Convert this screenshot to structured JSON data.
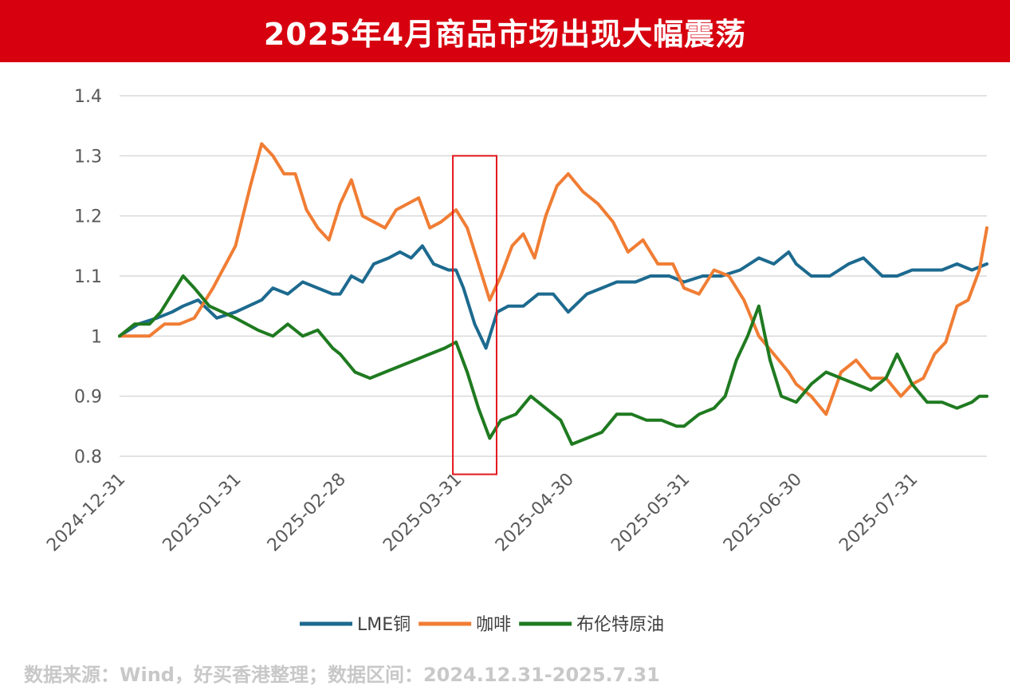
{
  "title": "2025年4月商品市场出现大幅震荡",
  "source": "数据来源：Wind，好买香港整理；数据区间：2024.12.31-2025.7.31",
  "colors": {
    "banner": "#d7000f",
    "highlight": "#e3181e",
    "grid": "#d9d9d9"
  },
  "chart_data": {
    "type": "line",
    "title": "",
    "xlabel": "",
    "ylabel": "",
    "ylim": [
      0.8,
      1.4
    ],
    "yticks": [
      {
        "value": 0.8,
        "label": "0.8"
      },
      {
        "value": 0.9,
        "label": "0.9"
      },
      {
        "value": 1.0,
        "label": "1"
      },
      {
        "value": 1.1,
        "label": "1.1"
      },
      {
        "value": 1.2,
        "label": "1.2"
      },
      {
        "value": 1.3,
        "label": "1.3"
      },
      {
        "value": 1.4,
        "label": "1.4"
      }
    ],
    "x_start": "2024-12-31",
    "x_end": "2025-08-20",
    "xticks": [
      "2024-12-31",
      "2025-01-31",
      "2025-02-28",
      "2025-03-31",
      "2025-04-30",
      "2025-05-31",
      "2025-06-30",
      "2025-07-31"
    ],
    "grid": "horizontal",
    "legend_position": "bottom",
    "highlight_range": {
      "x0": "2025-03-31",
      "x1": "2025-04-10",
      "y0": 0.77,
      "y1": 1.3
    },
    "series": [
      {
        "name": "LME铜",
        "color": "#1d6a8f",
        "points": [
          [
            "2024-12-31",
            1.0
          ],
          [
            "2025-01-05",
            1.02
          ],
          [
            "2025-01-10",
            1.03
          ],
          [
            "2025-01-14",
            1.04
          ],
          [
            "2025-01-17",
            1.05
          ],
          [
            "2025-01-21",
            1.06
          ],
          [
            "2025-01-26",
            1.03
          ],
          [
            "2025-01-31",
            1.04
          ],
          [
            "2025-02-07",
            1.06
          ],
          [
            "2025-02-10",
            1.08
          ],
          [
            "2025-02-14",
            1.07
          ],
          [
            "2025-02-18",
            1.09
          ],
          [
            "2025-02-22",
            1.08
          ],
          [
            "2025-02-26",
            1.07
          ],
          [
            "2025-02-28",
            1.07
          ],
          [
            "2025-03-03",
            1.1
          ],
          [
            "2025-03-06",
            1.09
          ],
          [
            "2025-03-09",
            1.12
          ],
          [
            "2025-03-13",
            1.13
          ],
          [
            "2025-03-16",
            1.14
          ],
          [
            "2025-03-19",
            1.13
          ],
          [
            "2025-03-22",
            1.15
          ],
          [
            "2025-03-25",
            1.12
          ],
          [
            "2025-03-29",
            1.11
          ],
          [
            "2025-03-31",
            1.11
          ],
          [
            "2025-04-02",
            1.08
          ],
          [
            "2025-04-05",
            1.02
          ],
          [
            "2025-04-08",
            0.98
          ],
          [
            "2025-04-11",
            1.04
          ],
          [
            "2025-04-14",
            1.05
          ],
          [
            "2025-04-18",
            1.05
          ],
          [
            "2025-04-22",
            1.07
          ],
          [
            "2025-04-26",
            1.07
          ],
          [
            "2025-04-30",
            1.04
          ],
          [
            "2025-05-05",
            1.07
          ],
          [
            "2025-05-09",
            1.08
          ],
          [
            "2025-05-13",
            1.09
          ],
          [
            "2025-05-18",
            1.09
          ],
          [
            "2025-05-22",
            1.1
          ],
          [
            "2025-05-27",
            1.1
          ],
          [
            "2025-05-31",
            1.09
          ],
          [
            "2025-06-05",
            1.1
          ],
          [
            "2025-06-10",
            1.1
          ],
          [
            "2025-06-15",
            1.11
          ],
          [
            "2025-06-20",
            1.13
          ],
          [
            "2025-06-24",
            1.12
          ],
          [
            "2025-06-28",
            1.14
          ],
          [
            "2025-06-30",
            1.12
          ],
          [
            "2025-07-04",
            1.1
          ],
          [
            "2025-07-09",
            1.1
          ],
          [
            "2025-07-14",
            1.12
          ],
          [
            "2025-07-18",
            1.13
          ],
          [
            "2025-07-23",
            1.1
          ],
          [
            "2025-07-27",
            1.1
          ],
          [
            "2025-07-31",
            1.11
          ],
          [
            "2025-08-04",
            1.11
          ],
          [
            "2025-08-08",
            1.11
          ],
          [
            "2025-08-12",
            1.12
          ],
          [
            "2025-08-16",
            1.11
          ],
          [
            "2025-08-20",
            1.12
          ]
        ]
      },
      {
        "name": "咖啡",
        "color": "#f07d34",
        "points": [
          [
            "2024-12-31",
            1.0
          ],
          [
            "2025-01-04",
            1.0
          ],
          [
            "2025-01-08",
            1.0
          ],
          [
            "2025-01-12",
            1.02
          ],
          [
            "2025-01-16",
            1.02
          ],
          [
            "2025-01-20",
            1.03
          ],
          [
            "2025-01-25",
            1.08
          ],
          [
            "2025-01-31",
            1.15
          ],
          [
            "2025-02-04",
            1.25
          ],
          [
            "2025-02-07",
            1.32
          ],
          [
            "2025-02-10",
            1.3
          ],
          [
            "2025-02-13",
            1.27
          ],
          [
            "2025-02-16",
            1.27
          ],
          [
            "2025-02-19",
            1.21
          ],
          [
            "2025-02-22",
            1.18
          ],
          [
            "2025-02-25",
            1.16
          ],
          [
            "2025-02-28",
            1.22
          ],
          [
            "2025-03-03",
            1.26
          ],
          [
            "2025-03-06",
            1.2
          ],
          [
            "2025-03-09",
            1.19
          ],
          [
            "2025-03-12",
            1.18
          ],
          [
            "2025-03-15",
            1.21
          ],
          [
            "2025-03-18",
            1.22
          ],
          [
            "2025-03-21",
            1.23
          ],
          [
            "2025-03-24",
            1.18
          ],
          [
            "2025-03-27",
            1.19
          ],
          [
            "2025-03-31",
            1.21
          ],
          [
            "2025-04-03",
            1.18
          ],
          [
            "2025-04-06",
            1.12
          ],
          [
            "2025-04-09",
            1.06
          ],
          [
            "2025-04-12",
            1.1
          ],
          [
            "2025-04-15",
            1.15
          ],
          [
            "2025-04-18",
            1.17
          ],
          [
            "2025-04-21",
            1.13
          ],
          [
            "2025-04-24",
            1.2
          ],
          [
            "2025-04-27",
            1.25
          ],
          [
            "2025-04-30",
            1.27
          ],
          [
            "2025-05-04",
            1.24
          ],
          [
            "2025-05-08",
            1.22
          ],
          [
            "2025-05-12",
            1.19
          ],
          [
            "2025-05-16",
            1.14
          ],
          [
            "2025-05-20",
            1.16
          ],
          [
            "2025-05-24",
            1.12
          ],
          [
            "2025-05-28",
            1.12
          ],
          [
            "2025-05-31",
            1.08
          ],
          [
            "2025-06-04",
            1.07
          ],
          [
            "2025-06-08",
            1.11
          ],
          [
            "2025-06-12",
            1.1
          ],
          [
            "2025-06-16",
            1.06
          ],
          [
            "2025-06-20",
            1.0
          ],
          [
            "2025-06-24",
            0.97
          ],
          [
            "2025-06-28",
            0.94
          ],
          [
            "2025-06-30",
            0.92
          ],
          [
            "2025-07-04",
            0.9
          ],
          [
            "2025-07-08",
            0.87
          ],
          [
            "2025-07-12",
            0.94
          ],
          [
            "2025-07-16",
            0.96
          ],
          [
            "2025-07-20",
            0.93
          ],
          [
            "2025-07-24",
            0.93
          ],
          [
            "2025-07-28",
            0.9
          ],
          [
            "2025-07-31",
            0.92
          ],
          [
            "2025-08-03",
            0.93
          ],
          [
            "2025-08-06",
            0.97
          ],
          [
            "2025-08-09",
            0.99
          ],
          [
            "2025-08-12",
            1.05
          ],
          [
            "2025-08-15",
            1.06
          ],
          [
            "2025-08-18",
            1.11
          ],
          [
            "2025-08-20",
            1.18
          ]
        ]
      },
      {
        "name": "布伦特原油",
        "color": "#1f7a20",
        "points": [
          [
            "2024-12-31",
            1.0
          ],
          [
            "2025-01-04",
            1.02
          ],
          [
            "2025-01-08",
            1.02
          ],
          [
            "2025-01-11",
            1.04
          ],
          [
            "2025-01-14",
            1.07
          ],
          [
            "2025-01-17",
            1.1
          ],
          [
            "2025-01-20",
            1.08
          ],
          [
            "2025-01-24",
            1.05
          ],
          [
            "2025-01-31",
            1.03
          ],
          [
            "2025-02-06",
            1.01
          ],
          [
            "2025-02-10",
            1.0
          ],
          [
            "2025-02-14",
            1.02
          ],
          [
            "2025-02-18",
            1.0
          ],
          [
            "2025-02-22",
            1.01
          ],
          [
            "2025-02-26",
            0.98
          ],
          [
            "2025-02-28",
            0.97
          ],
          [
            "2025-03-04",
            0.94
          ],
          [
            "2025-03-08",
            0.93
          ],
          [
            "2025-03-12",
            0.94
          ],
          [
            "2025-03-16",
            0.95
          ],
          [
            "2025-03-20",
            0.96
          ],
          [
            "2025-03-24",
            0.97
          ],
          [
            "2025-03-28",
            0.98
          ],
          [
            "2025-03-31",
            0.99
          ],
          [
            "2025-04-03",
            0.94
          ],
          [
            "2025-04-06",
            0.88
          ],
          [
            "2025-04-09",
            0.83
          ],
          [
            "2025-04-12",
            0.86
          ],
          [
            "2025-04-16",
            0.87
          ],
          [
            "2025-04-20",
            0.9
          ],
          [
            "2025-04-24",
            0.88
          ],
          [
            "2025-04-28",
            0.86
          ],
          [
            "2025-05-01",
            0.82
          ],
          [
            "2025-05-05",
            0.83
          ],
          [
            "2025-05-09",
            0.84
          ],
          [
            "2025-05-13",
            0.87
          ],
          [
            "2025-05-17",
            0.87
          ],
          [
            "2025-05-21",
            0.86
          ],
          [
            "2025-05-25",
            0.86
          ],
          [
            "2025-05-29",
            0.85
          ],
          [
            "2025-05-31",
            0.85
          ],
          [
            "2025-06-04",
            0.87
          ],
          [
            "2025-06-08",
            0.88
          ],
          [
            "2025-06-11",
            0.9
          ],
          [
            "2025-06-14",
            0.96
          ],
          [
            "2025-06-17",
            1.0
          ],
          [
            "2025-06-20",
            1.05
          ],
          [
            "2025-06-23",
            0.96
          ],
          [
            "2025-06-26",
            0.9
          ],
          [
            "2025-06-30",
            0.89
          ],
          [
            "2025-07-04",
            0.92
          ],
          [
            "2025-07-08",
            0.94
          ],
          [
            "2025-07-12",
            0.93
          ],
          [
            "2025-07-16",
            0.92
          ],
          [
            "2025-07-20",
            0.91
          ],
          [
            "2025-07-24",
            0.93
          ],
          [
            "2025-07-27",
            0.97
          ],
          [
            "2025-07-31",
            0.92
          ],
          [
            "2025-08-04",
            0.89
          ],
          [
            "2025-08-08",
            0.89
          ],
          [
            "2025-08-12",
            0.88
          ],
          [
            "2025-08-16",
            0.89
          ],
          [
            "2025-08-18",
            0.9
          ],
          [
            "2025-08-20",
            0.9
          ]
        ]
      }
    ]
  }
}
